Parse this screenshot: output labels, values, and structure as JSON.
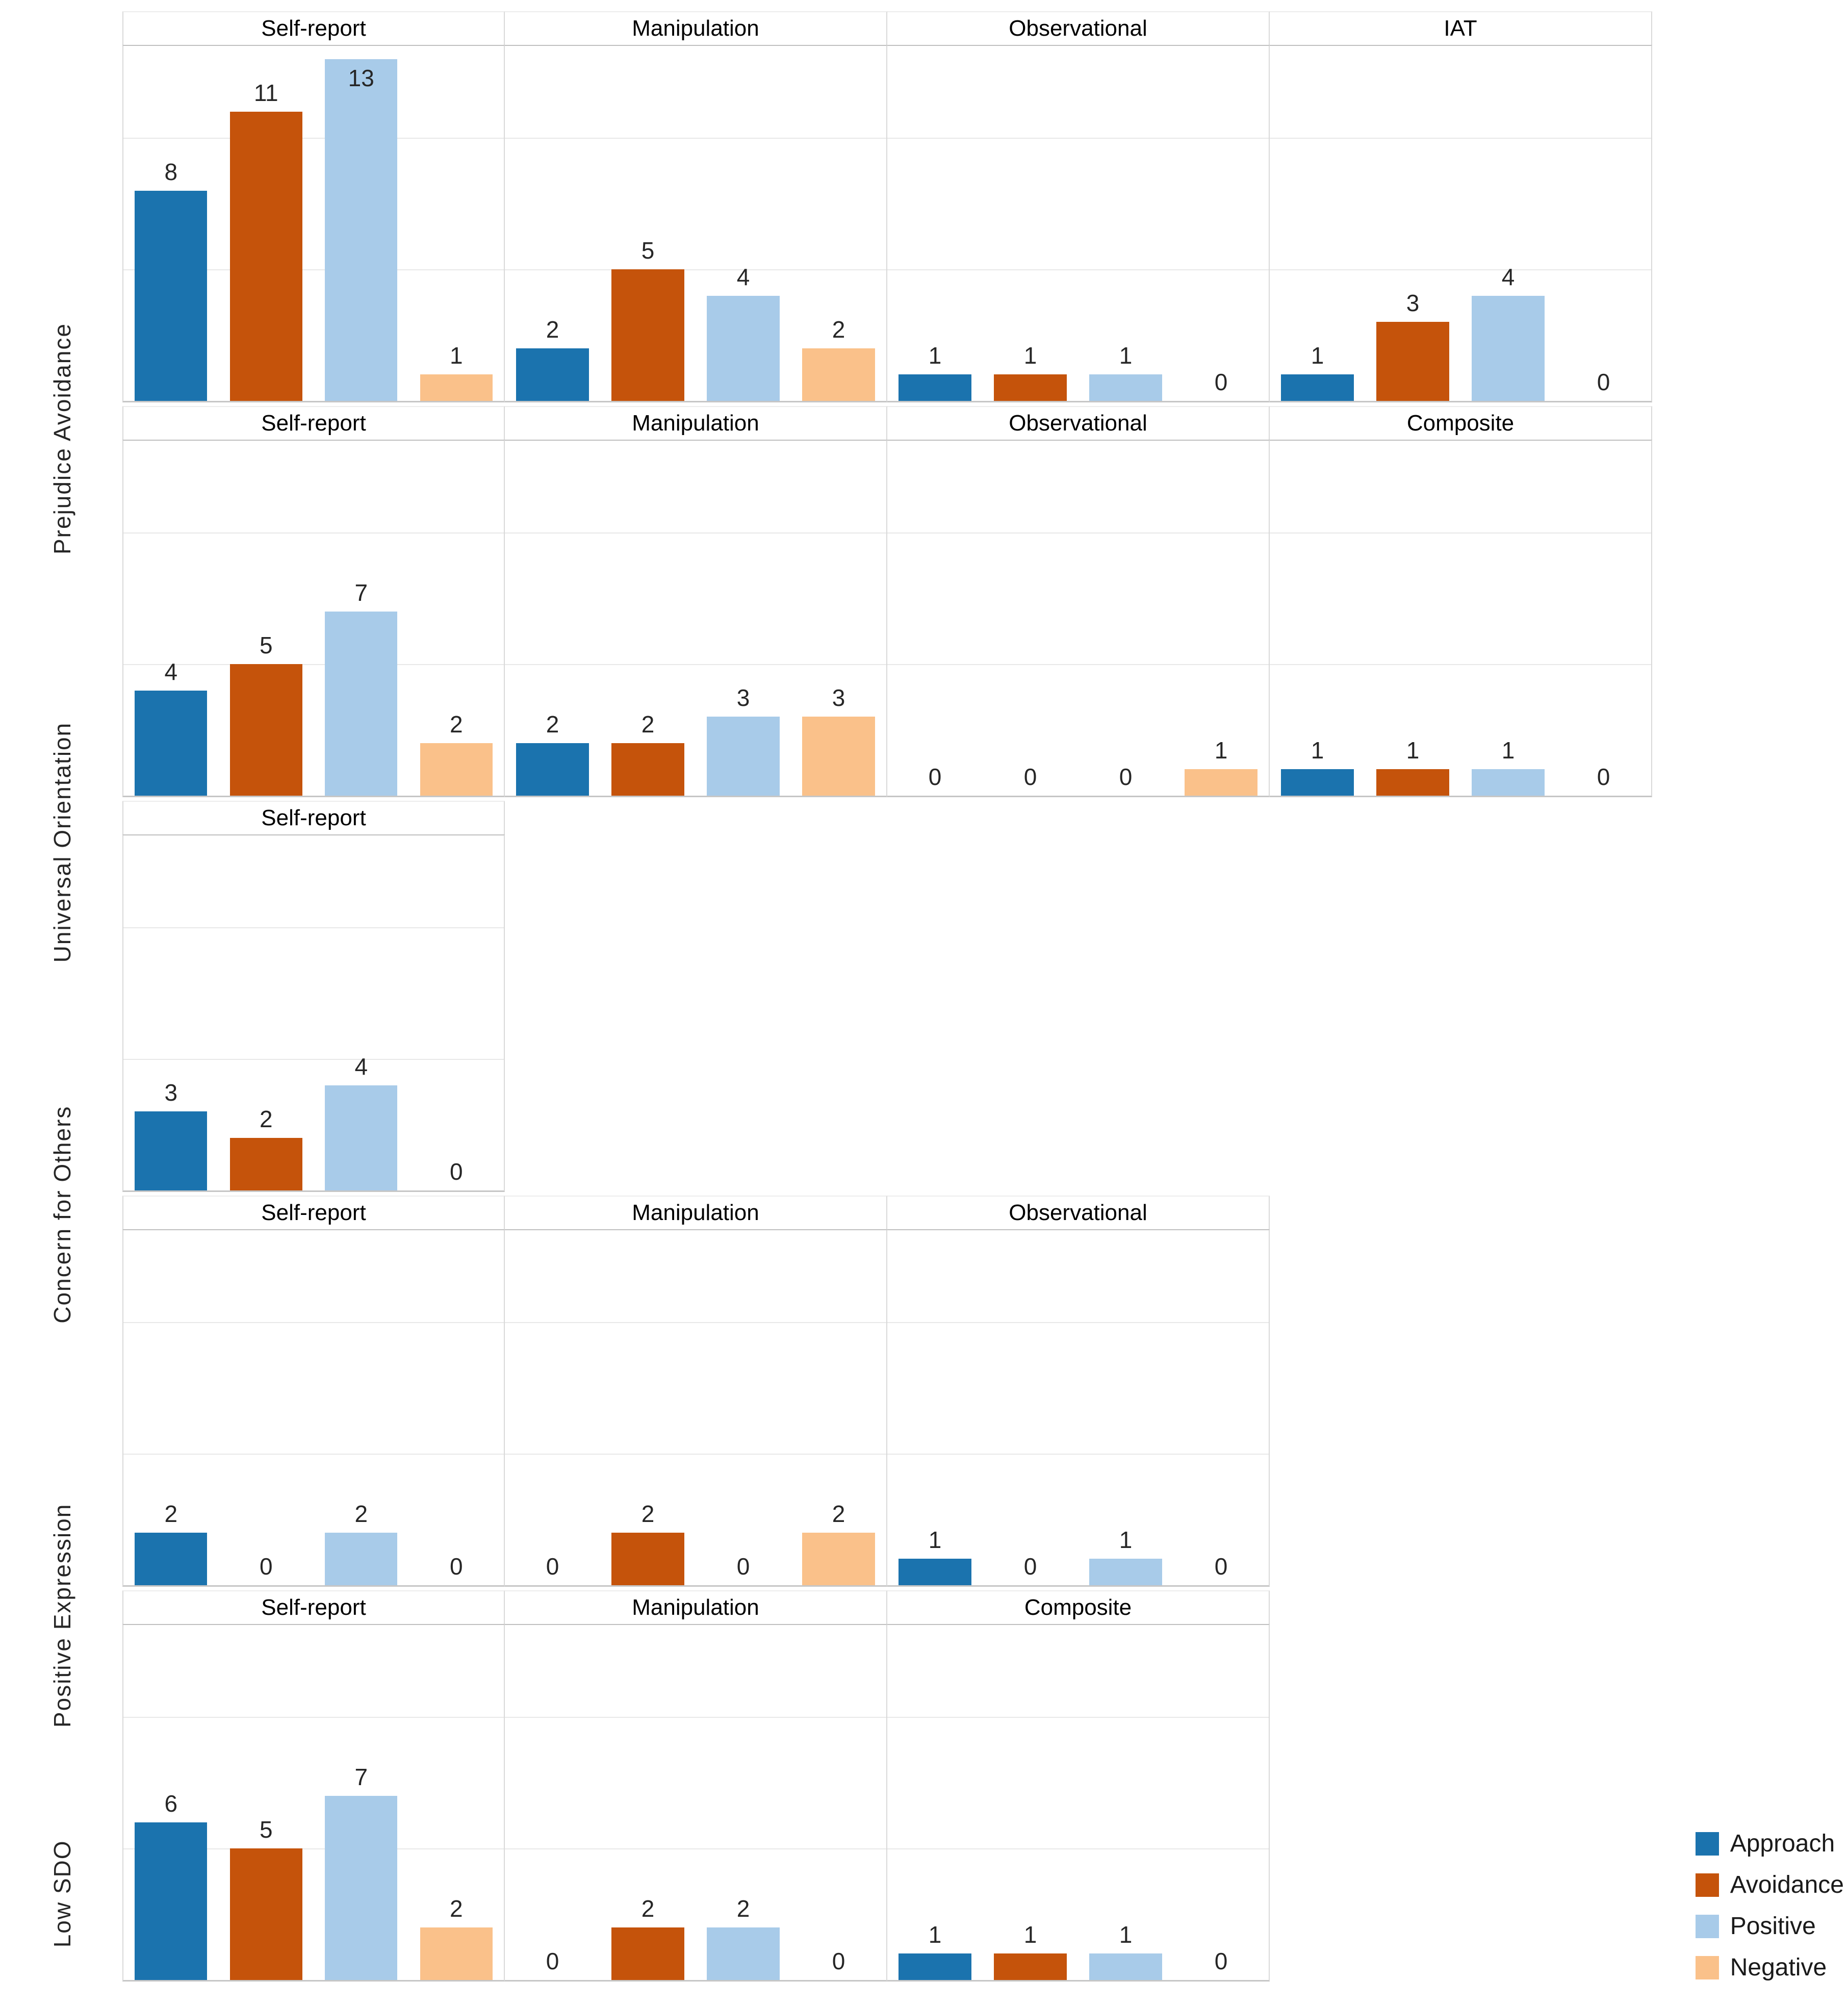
{
  "chart_data": {
    "type": "bar",
    "faceted": true,
    "title": "",
    "xlabel": "",
    "ylabel": "",
    "ylim": [
      0,
      13.5
    ],
    "grid": true,
    "gridline_values": [
      5,
      10
    ],
    "series": [
      {
        "name": "Approach",
        "color": "#1b73ae"
      },
      {
        "name": "Avoidance",
        "color": "#c5530b"
      },
      {
        "name": "Positive",
        "color": "#a8cbe9"
      },
      {
        "name": "Negative",
        "color": "#fac18a"
      }
    ],
    "rows": [
      {
        "label": "Prejudice Avoidance",
        "facets": [
          {
            "title": "Self-report",
            "values": [
              8,
              11,
              13,
              1
            ]
          },
          {
            "title": "Manipulation",
            "values": [
              2,
              5,
              4,
              2
            ]
          },
          {
            "title": "Observational",
            "values": [
              1,
              1,
              1,
              0
            ]
          },
          {
            "title": "IAT",
            "values": [
              1,
              3,
              4,
              0
            ]
          }
        ]
      },
      {
        "label": "Universal Orientation",
        "facets": [
          {
            "title": "Self-report",
            "values": [
              4,
              5,
              7,
              2
            ]
          },
          {
            "title": "Manipulation",
            "values": [
              2,
              2,
              3,
              3
            ]
          },
          {
            "title": "Observational",
            "values": [
              0,
              0,
              0,
              1
            ]
          },
          {
            "title": "Composite",
            "values": [
              1,
              1,
              1,
              0
            ]
          }
        ]
      },
      {
        "label": "Concern for Others",
        "facets": [
          {
            "title": "Self-report",
            "values": [
              3,
              2,
              4,
              0
            ]
          }
        ]
      },
      {
        "label": "Positive Expression",
        "facets": [
          {
            "title": "Self-report",
            "values": [
              2,
              0,
              2,
              0
            ]
          },
          {
            "title": "Manipulation",
            "values": [
              0,
              2,
              0,
              2
            ]
          },
          {
            "title": "Observational",
            "values": [
              1,
              0,
              1,
              0
            ]
          }
        ]
      },
      {
        "label": "Low SDO",
        "facets": [
          {
            "title": "Self-report",
            "values": [
              6,
              5,
              7,
              2
            ]
          },
          {
            "title": "Manipulation",
            "values": [
              0,
              2,
              2,
              0
            ]
          },
          {
            "title": "Composite",
            "values": [
              1,
              1,
              1,
              0
            ]
          }
        ]
      }
    ],
    "legend": {
      "position": "bottom-right",
      "entries": [
        "Approach",
        "Avoidance",
        "Positive",
        "Negative"
      ]
    }
  },
  "style_colors": {
    "grid": "#e8e8e8",
    "panel_border": "#d9d9d9",
    "axis_line": "#bfbfbf",
    "label_text": "#262626"
  }
}
